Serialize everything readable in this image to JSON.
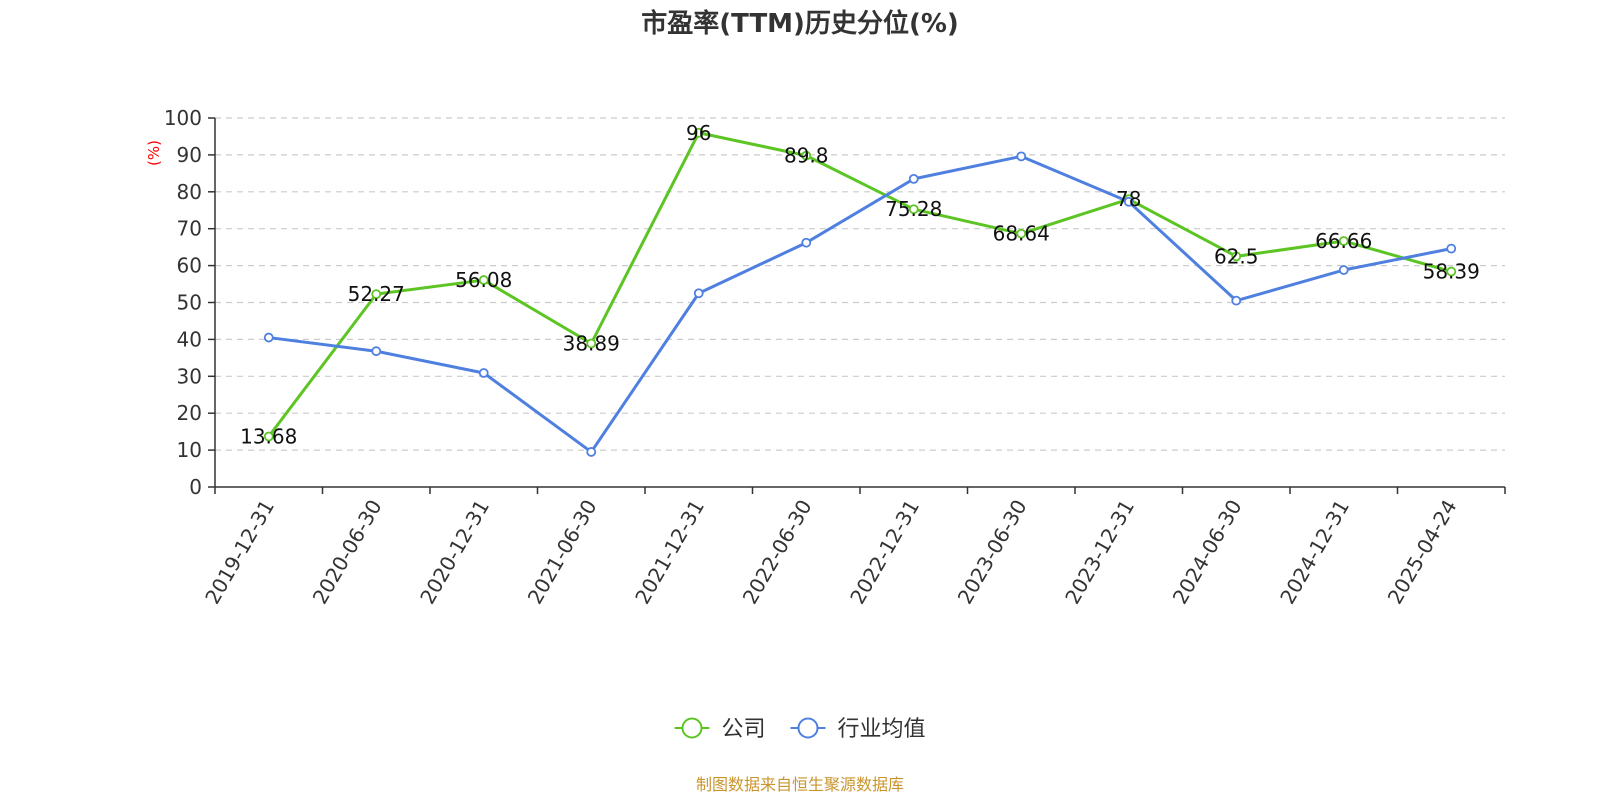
{
  "title": "市盈率(TTM)历史分位(%)",
  "source_note": "制图数据来自恒生聚源数据库",
  "chart_data": {
    "type": "line",
    "title": "市盈率(TTM)历史分位(%)",
    "xlabel": "",
    "ylabel": "(%)",
    "ylim": [
      0,
      100
    ],
    "yticks": [
      0,
      10,
      20,
      30,
      40,
      50,
      60,
      70,
      80,
      90,
      100
    ],
    "grid": true,
    "legend_position": "bottom",
    "categories": [
      "2019-12-31",
      "2020-06-30",
      "2020-12-31",
      "2021-06-30",
      "2021-12-31",
      "2022-06-30",
      "2022-12-31",
      "2023-06-30",
      "2023-12-31",
      "2024-06-30",
      "2024-12-31",
      "2025-04-24"
    ],
    "series": [
      {
        "name": "公司",
        "color": "#5cc523",
        "values": [
          13.68,
          52.27,
          56.08,
          38.89,
          96,
          89.8,
          75.28,
          68.64,
          78,
          62.5,
          66.66,
          58.39
        ],
        "labels": [
          "13.68",
          "52.27",
          "56.08",
          "38.89",
          "96",
          "89.8",
          "75.28",
          "68.64",
          "78",
          "62.5",
          "66.66",
          "58.39"
        ],
        "show_labels": true
      },
      {
        "name": "行业均值",
        "color": "#4f80e0",
        "values": [
          40.5,
          36.8,
          30.9,
          9.5,
          52.5,
          66.2,
          83.5,
          89.6,
          77.3,
          50.5,
          58.8,
          64.6
        ],
        "show_labels": false
      }
    ]
  }
}
